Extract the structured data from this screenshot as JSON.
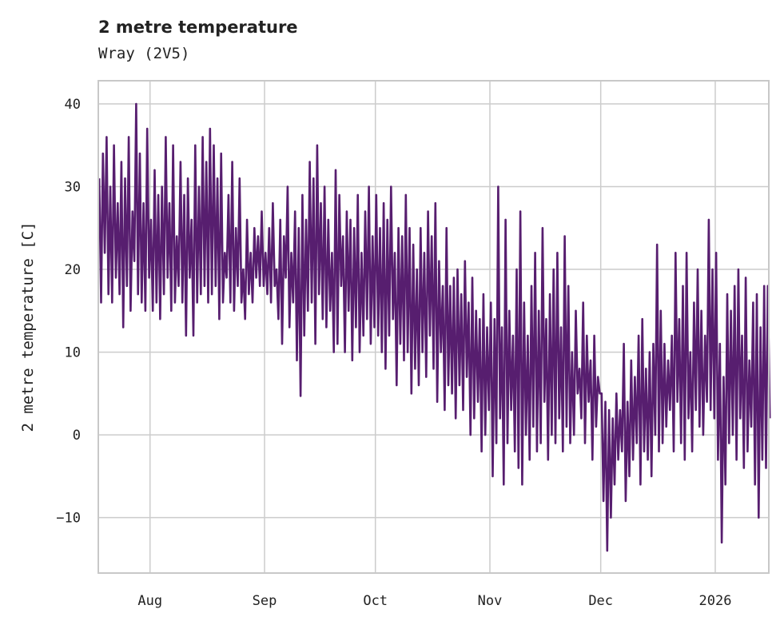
{
  "chart_data": {
    "type": "line",
    "title": "2 metre temperature",
    "subtitle": "Wray (2V5)",
    "xlabel": "",
    "ylabel": "2 metre temperature [C]",
    "start_date": "2025-07-18",
    "step_hours": 12,
    "x_unit": "days since start",
    "xlim": [
      0,
      181.5
    ],
    "ylim": [
      -16.7,
      42.8
    ],
    "grid": true,
    "color": "#571e6f",
    "yticks": [
      -10,
      0,
      10,
      20,
      30,
      40
    ],
    "ytick_labels": [
      "−10",
      "0",
      "10",
      "20",
      "30",
      "40"
    ],
    "xticks": [
      14,
      45,
      75,
      106,
      136,
      167
    ],
    "xtick_labels": [
      "Aug",
      "Sep",
      "Oct",
      "Nov",
      "Dec",
      "2026"
    ],
    "values": [
      31,
      16,
      34,
      22,
      36,
      17,
      30,
      16,
      35,
      19,
      28,
      17,
      33,
      13,
      31,
      18,
      36,
      15,
      27,
      21,
      40,
      17,
      34,
      16,
      28,
      15,
      37,
      19,
      26,
      15,
      32,
      16,
      29,
      14,
      30,
      17,
      36,
      19,
      28,
      15,
      35,
      16,
      24,
      18,
      33,
      16,
      29,
      12,
      31,
      19,
      26,
      12,
      35,
      16,
      30,
      17,
      36,
      18,
      33,
      16,
      37,
      17,
      35,
      18,
      31,
      14,
      34,
      16,
      22,
      19,
      29,
      16,
      33,
      15,
      25,
      18,
      31,
      16,
      20,
      14,
      26,
      17,
      22,
      16,
      25,
      19,
      24,
      18,
      27,
      18,
      22,
      17,
      25,
      16,
      28,
      18,
      20,
      14,
      26,
      11,
      24,
      19,
      30,
      13,
      22,
      16,
      27,
      9,
      25,
      4.7,
      29,
      12,
      26,
      15,
      33,
      16,
      31,
      11,
      35,
      17,
      28,
      14,
      30,
      13,
      26,
      15,
      22,
      10,
      32,
      11,
      29,
      18,
      24,
      10,
      27,
      15,
      26,
      9,
      25,
      13,
      29,
      10,
      22,
      12,
      27,
      14,
      30,
      11,
      24,
      13,
      29,
      12,
      25,
      10,
      28,
      8,
      26,
      12,
      30,
      14,
      22,
      6,
      25,
      11,
      24,
      9,
      29,
      10,
      25,
      5,
      23,
      8,
      20,
      6,
      25,
      10,
      22,
      7,
      27,
      12,
      24,
      8,
      28,
      4,
      21,
      10,
      18,
      3,
      25,
      6,
      18,
      5,
      19,
      2,
      20,
      6,
      17,
      3,
      21,
      7,
      16,
      0,
      19,
      2,
      15,
      4,
      14,
      -2,
      17,
      0,
      13,
      3,
      16,
      -5,
      14,
      -1,
      30,
      2,
      13,
      -6,
      26,
      -1,
      15,
      3,
      12,
      -2,
      20,
      -4,
      27,
      -6,
      16,
      0,
      12,
      -3,
      18,
      1,
      22,
      -2,
      15,
      -1,
      25,
      4,
      14,
      -3,
      17,
      0,
      20,
      -1,
      22,
      2,
      13,
      -2,
      24,
      1,
      18,
      -1,
      10,
      0,
      15,
      5,
      8,
      2,
      16,
      -1,
      12,
      4,
      9,
      -3,
      12,
      1,
      7,
      5,
      5,
      -8,
      4,
      -14,
      3,
      -10,
      2,
      -6,
      5,
      -3,
      3,
      -2,
      11,
      -8,
      4,
      -5,
      9,
      -3,
      7,
      -1,
      12,
      -6,
      14,
      -2,
      8,
      -3,
      10,
      -5,
      11,
      0,
      23,
      -2,
      15,
      -1,
      11,
      1,
      9,
      3,
      12,
      -2,
      22,
      4,
      14,
      -1,
      18,
      -3,
      22,
      2,
      10,
      -2,
      16,
      3,
      20,
      1,
      15,
      0,
      12,
      4,
      26,
      3,
      20,
      2,
      22,
      -3,
      11,
      -13,
      7,
      -6,
      17,
      -1,
      15,
      0,
      18,
      -3,
      20,
      2,
      12,
      -4,
      19,
      -2,
      9,
      1,
      16,
      -6,
      17,
      -10,
      13,
      -3,
      18,
      -4,
      18,
      2
    ]
  }
}
